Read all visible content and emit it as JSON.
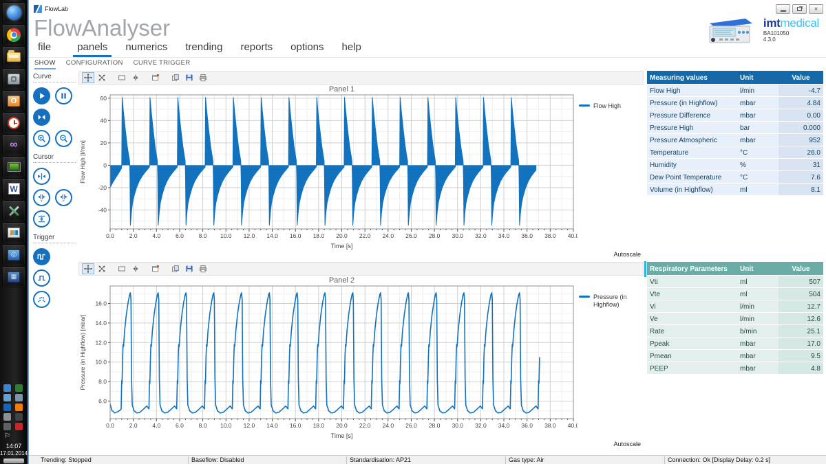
{
  "window": {
    "title": "FlowLab"
  },
  "taskbar": {
    "clock": "14:07",
    "date": "17.01.2014",
    "icons": [
      {
        "name": "start-icon"
      },
      {
        "name": "chrome-icon"
      },
      {
        "name": "explorer-icon"
      },
      {
        "name": "safe-icon"
      },
      {
        "name": "outlook-icon"
      },
      {
        "name": "timer-icon"
      },
      {
        "name": "visual-studio-icon"
      },
      {
        "name": "remote-desktop-icon"
      },
      {
        "name": "word-icon"
      },
      {
        "name": "tools-icon"
      },
      {
        "name": "vmware-icon"
      },
      {
        "name": "network-app-icon"
      },
      {
        "name": "media-app-icon"
      }
    ],
    "tray": [
      {
        "name": "language-icon",
        "color": "#3a86d4"
      },
      {
        "name": "vpn-icon",
        "color": "#2e7d32"
      },
      {
        "name": "sync-icon",
        "color": "#64a0d4"
      },
      {
        "name": "update-icon",
        "color": "#7a96a8"
      },
      {
        "name": "bluetooth-icon",
        "color": "#1565c0"
      },
      {
        "name": "messenger-icon",
        "color": "#f57c00"
      },
      {
        "name": "volume-icon",
        "color": "#8a9298"
      },
      {
        "name": "battery-icon",
        "color": "#3c4248"
      },
      {
        "name": "signal-icon",
        "color": "#5a6268"
      },
      {
        "name": "mute-icon",
        "color": "#c62828"
      },
      {
        "name": "flag-icon",
        "color": "#e8eef2"
      }
    ]
  },
  "header": {
    "app_title": "FlowAnalyser",
    "brand_imt": "imt",
    "brand_medical": "medical",
    "model": "BA101050",
    "version": "4.3.0"
  },
  "menu": {
    "items": [
      {
        "label": "file"
      },
      {
        "label": "panels",
        "active": true
      },
      {
        "label": "numerics"
      },
      {
        "label": "trending"
      },
      {
        "label": "reports"
      },
      {
        "label": "options"
      },
      {
        "label": "help"
      }
    ]
  },
  "tabs": {
    "items": [
      {
        "label": "SHOW",
        "active": true
      },
      {
        "label": "CONFIGURATION"
      },
      {
        "label": "CURVE TRIGGER"
      }
    ]
  },
  "tools": {
    "groups": [
      {
        "title": "Curve",
        "rows": [
          [
            {
              "icon": "play-icon",
              "active": true
            },
            {
              "icon": "pause-icon"
            }
          ],
          [
            {
              "icon": "fit-curve-icon",
              "active": true
            }
          ],
          [
            {
              "icon": "zoom-in-icon"
            },
            {
              "icon": "zoom-out-icon"
            }
          ]
        ]
      },
      {
        "title": "Cursor",
        "rows": [
          [
            {
              "icon": "cursor-center-icon"
            }
          ],
          [
            {
              "icon": "cursor-time-icon"
            },
            {
              "icon": "cursor-free-icon"
            }
          ],
          [
            {
              "icon": "cursor-vertical-icon"
            }
          ]
        ]
      },
      {
        "title": "Trigger",
        "rows": [
          [
            {
              "icon": "trigger-continuous-icon",
              "active": true
            }
          ],
          [
            {
              "icon": "trigger-single-icon"
            }
          ],
          [
            {
              "icon": "trigger-manual-icon"
            }
          ]
        ]
      }
    ]
  },
  "chart_toolbar": {
    "icons": [
      {
        "name": "pan-icon",
        "pressed": true
      },
      {
        "name": "zoom-arrows-icon"
      },
      {
        "name": "rect-select-icon"
      },
      {
        "name": "cursor-track-icon"
      },
      {
        "name": "window-settings-icon"
      },
      {
        "name": "copy-icon"
      },
      {
        "name": "save-icon"
      },
      {
        "name": "print-icon"
      }
    ]
  },
  "panels": [
    {
      "title": "Panel 1",
      "legend": "Flow High",
      "autoscale": "Autoscale"
    },
    {
      "title": "Panel 2",
      "legend": "Pressure (in\nHighflow)",
      "autoscale": "Autoscale"
    }
  ],
  "chart_data": [
    {
      "type": "area",
      "title": "Panel 1",
      "series_name": "Flow High",
      "xlabel": "Time [s]",
      "ylabel": "Flow High [l/min]",
      "xlim": [
        0,
        40
      ],
      "ylim": [
        -57,
        63
      ],
      "xtick_values": [
        0,
        2,
        4,
        6,
        8,
        10,
        12,
        14,
        16,
        18,
        20,
        22,
        24,
        26,
        28,
        30,
        32,
        34,
        36,
        38,
        40
      ],
      "xtick_labels": [
        "0.0",
        "2.0",
        "4.0",
        "6.0",
        "8.0",
        "10.0",
        "12.0",
        "14.0",
        "16.0",
        "18.0",
        "20.0",
        "22.0",
        "24.0",
        "26.0",
        "28.0",
        "30.0",
        "32.0",
        "34.0",
        "36.0",
        "38.0",
        "40.0"
      ],
      "ytick_values": [
        -40,
        -20,
        0,
        20,
        40,
        60
      ],
      "ytick_labels": [
        "-40",
        "-20",
        "0",
        "20",
        "40",
        "60"
      ],
      "minor_x_step": 1,
      "minor_y_step": 10,
      "color": "#1272bd",
      "fill": true,
      "legend_position": "right",
      "grid": true,
      "signal": {
        "pre": [
          [
            0,
            -20
          ],
          [
            0.25,
            -15
          ],
          [
            0.55,
            -10
          ],
          [
            0.8,
            -6
          ],
          [
            0.97,
            -3
          ]
        ],
        "cycle_start": 1.0,
        "period": 2.4,
        "cycles": 15,
        "t_end": 36.9,
        "cycle": [
          [
            0,
            -1.5
          ],
          [
            0.04,
            61
          ],
          [
            0.14,
            49
          ],
          [
            0.3,
            33
          ],
          [
            0.48,
            17
          ],
          [
            0.6,
            9
          ],
          [
            0.68,
            4
          ],
          [
            0.71,
            -10
          ],
          [
            0.75,
            -54
          ],
          [
            0.83,
            -43
          ],
          [
            0.93,
            -34
          ],
          [
            1.08,
            -27
          ],
          [
            1.28,
            -20
          ],
          [
            1.5,
            -14.5
          ],
          [
            1.75,
            -10
          ],
          [
            2.0,
            -6.5
          ],
          [
            2.2,
            -4
          ],
          [
            2.37,
            -2
          ]
        ]
      }
    },
    {
      "type": "line",
      "title": "Panel 2",
      "series_name": "Pressure (in Highflow)",
      "xlabel": "Time [s]",
      "ylabel": "Pressure (in Highflow) [mbar]",
      "xlim": [
        0,
        40
      ],
      "ylim": [
        4.2,
        17.8
      ],
      "xtick_values": [
        0,
        2,
        4,
        6,
        8,
        10,
        12,
        14,
        16,
        18,
        20,
        22,
        24,
        26,
        28,
        30,
        32,
        34,
        36,
        38,
        40
      ],
      "xtick_labels": [
        "0.0",
        "2.0",
        "4.0",
        "6.0",
        "8.0",
        "10.0",
        "12.0",
        "14.0",
        "16.0",
        "18.0",
        "20.0",
        "22.0",
        "24.0",
        "26.0",
        "28.0",
        "30.0",
        "32.0",
        "34.0",
        "36.0",
        "38.0",
        "40.0"
      ],
      "ytick_values": [
        6,
        8,
        10,
        12,
        14,
        16
      ],
      "ytick_labels": [
        "6.0",
        "8.0",
        "10.0",
        "12.0",
        "14.0",
        "16.0"
      ],
      "minor_x_step": 1,
      "minor_y_step": 1,
      "color": "#1272bd",
      "fill": false,
      "legend_position": "right",
      "grid": true,
      "signal": {
        "pre": [
          [
            0,
            5.7
          ],
          [
            0.15,
            5.05
          ],
          [
            0.4,
            4.78
          ],
          [
            0.68,
            4.92
          ],
          [
            0.9,
            5.1
          ]
        ],
        "cycle_start": 0.95,
        "period": 2.4,
        "cycles": 16,
        "t_end": 37.1,
        "cycle": [
          [
            0,
            5.2
          ],
          [
            0.05,
            8.1
          ],
          [
            0.08,
            7.8
          ],
          [
            0.13,
            10.5
          ],
          [
            0.17,
            11.8
          ],
          [
            0.21,
            11.6
          ],
          [
            0.3,
            13.2
          ],
          [
            0.45,
            14.9
          ],
          [
            0.6,
            16.1
          ],
          [
            0.73,
            16.9
          ],
          [
            0.8,
            17.1
          ],
          [
            0.85,
            16.4
          ],
          [
            0.9,
            8.3
          ],
          [
            0.96,
            5.6
          ],
          [
            1.12,
            5.0
          ],
          [
            1.35,
            4.78
          ],
          [
            1.62,
            4.85
          ],
          [
            1.95,
            5.2
          ],
          [
            2.22,
            5.5
          ],
          [
            2.36,
            5.25
          ]
        ]
      }
    }
  ],
  "tables": [
    {
      "name": "measuring-values-table",
      "columns": [
        "Measuring values",
        "Unit",
        "Value"
      ],
      "rows": [
        [
          "Flow High",
          "l/min",
          "-4.7"
        ],
        [
          "Pressure (in Highflow)",
          "mbar",
          "4.84"
        ],
        [
          "Pressure Difference",
          "mbar",
          "0.00"
        ],
        [
          "Pressure High",
          "bar",
          "0.000"
        ],
        [
          "Pressure Atmospheric",
          "mbar",
          "952"
        ],
        [
          "Temperature",
          "°C",
          "26.0"
        ],
        [
          "Humidity",
          "%",
          "31"
        ],
        [
          "Dew Point Temperature",
          "°C",
          "7.6"
        ],
        [
          "Volume (in Highflow)",
          "ml",
          "8.1"
        ]
      ],
      "theme": {
        "header_bg": "#1569a8",
        "header_fg": "#ffffff",
        "row_bg": "#e7f0fa",
        "value_bg": "#d8e4f2",
        "text": "#16405f"
      }
    },
    {
      "name": "respiratory-parameters-table",
      "columns": [
        "Respiratory Parameters",
        "Unit",
        "Value"
      ],
      "rows": [
        [
          "Vti",
          "ml",
          "507"
        ],
        [
          "Vte",
          "ml",
          "504"
        ],
        [
          "Vi",
          "l/min",
          "12.7"
        ],
        [
          "Ve",
          "l/min",
          "12.6"
        ],
        [
          "Rate",
          "b/min",
          "25.1"
        ],
        [
          "Ppeak",
          "mbar",
          "17.0"
        ],
        [
          "Pmean",
          "mbar",
          "9.5"
        ],
        [
          "PEEP",
          "mbar",
          "4.8"
        ]
      ],
      "theme": {
        "header_bg": "#6aaca6",
        "header_fg": "#ffffff",
        "row_bg": "#e3efed",
        "value_bg": "#d6e8e5",
        "text": "#2a4a46"
      },
      "accent": "#2bb1e8"
    }
  ],
  "status_bar": {
    "items": [
      "Trending: Stopped",
      "Baseflow: Disabled",
      "Standardisation: AP21",
      "Gas type: Air",
      "Connection: Ok [Display Delay: 0.2 s]"
    ]
  }
}
